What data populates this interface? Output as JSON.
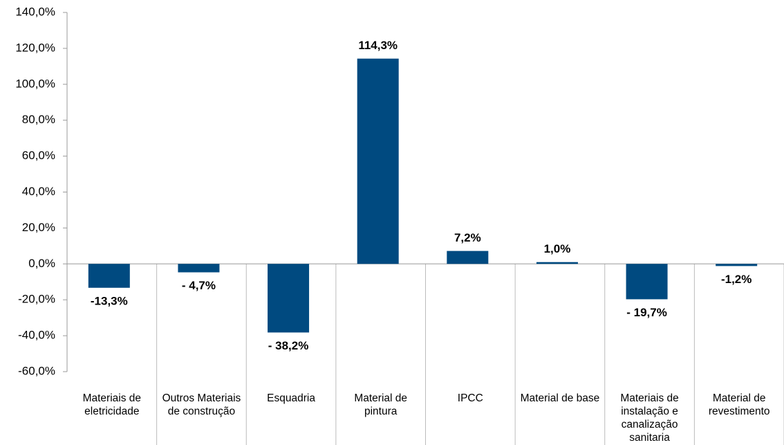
{
  "chart_data": {
    "type": "bar",
    "categories": [
      "Materiais de eletricidade",
      "Outros Materiais de construção",
      "Esquadria",
      "Material de pintura",
      "IPCC",
      "Material de base",
      "Materiais de instalação e canalização sanitaria",
      "Material de revestimento"
    ],
    "values": [
      -13.3,
      -4.7,
      -38.2,
      114.3,
      7.2,
      1.0,
      -19.7,
      -1.2
    ],
    "value_labels": [
      "-13,3%",
      "- 4,7%",
      "- 38,2%",
      "114,3%",
      "7,2%",
      "1,0%",
      "- 19,7%",
      "-1,2%"
    ],
    "color": "#004a80",
    "ylim": [
      -60,
      140
    ],
    "yticks": [
      {
        "value": -60,
        "label": "-60,0%"
      },
      {
        "value": -40,
        "label": "-40,0%"
      },
      {
        "value": -20,
        "label": "-20,0%"
      },
      {
        "value": 0,
        "label": "0,0%"
      },
      {
        "value": 20,
        "label": "20,0%"
      },
      {
        "value": 40,
        "label": "40,0%"
      },
      {
        "value": 60,
        "label": "60,0%"
      },
      {
        "value": 80,
        "label": "80,0%"
      },
      {
        "value": 100,
        "label": "100,0%"
      },
      {
        "value": 120,
        "label": "120,0%"
      },
      {
        "value": 140,
        "label": "140,0%"
      }
    ]
  }
}
